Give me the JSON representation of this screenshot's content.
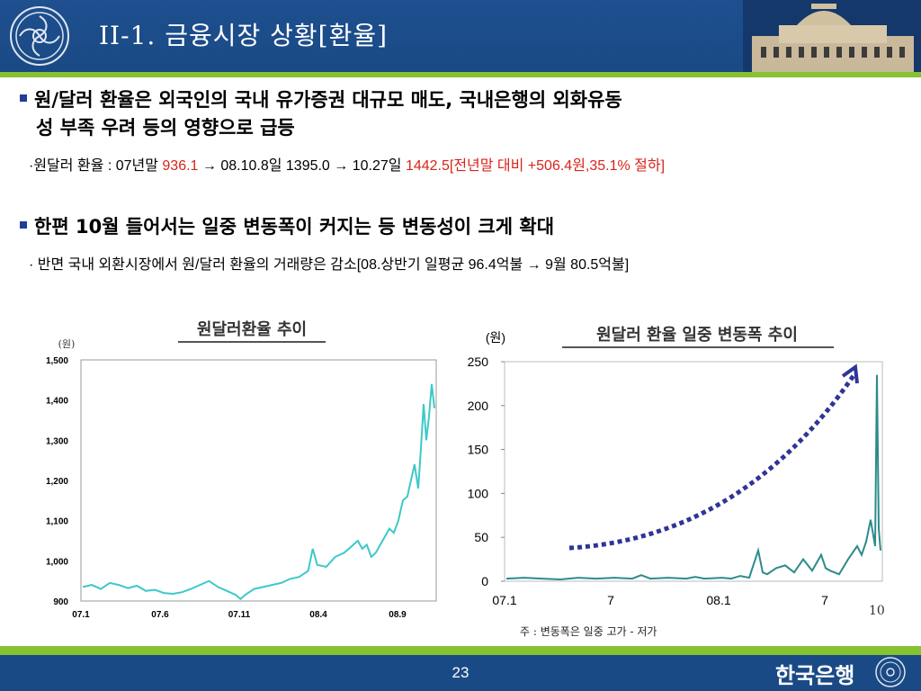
{
  "header": {
    "title": "II-1. 금융시장 상황[환율]"
  },
  "bullets": [
    {
      "line1": "원/달러 환율은 외국인의 국내 유가증권 대규모 매도, 국내은행의 외화유동",
      "line2": "성 부족 우려 등의 영향으로 급등",
      "sub": {
        "p1": "·원달러 환율 : 07년말 ",
        "v1": "936.1",
        "p2": " → 08.10.8일 1395.0 → 10.27일 ",
        "v2": "1442.5[전년말 대비  +506.4원,35.1% 절하]"
      }
    },
    {
      "line1": "한편 10월 들어서는 일중 변동폭이 커지는 등 변동성이 크게 확대",
      "sub": "· 반면 국내 외환시장에서 원/달러 환율의 거래량은 감소[08.상반기 일평균 96.4억불 → 9월 80.5억불]"
    }
  ],
  "chart_left": {
    "type": "line",
    "title": "원달러환율 추이",
    "unit": "(원)",
    "ylim": [
      900,
      1500
    ],
    "y_ticks": [
      "1,500",
      "1,400",
      "1,300",
      "1,200",
      "1,100",
      "1,000",
      "900"
    ],
    "x_ticks": [
      "07.1",
      "07.6",
      "07.11",
      "08.4",
      "08.9"
    ],
    "color": "#3ec8c8"
  },
  "chart_right": {
    "type": "line",
    "title": "원달러 환율 일중 변동폭 추이",
    "unit": "(원)",
    "ylim": [
      0,
      250
    ],
    "y_ticks": [
      "250",
      "200",
      "150",
      "100",
      "50",
      "0"
    ],
    "x_ticks": [
      "07.1",
      "7",
      "08.1",
      "7"
    ],
    "extra_tick": "10",
    "color": "#2e8b8b",
    "arrow_color": "#2f3597",
    "note": "주 : 변동폭은 일중 고가 - 저가"
  },
  "chart_data": [
    {
      "type": "line",
      "title": "원달러환율 추이",
      "ylabel": "(원)",
      "ylim": [
        900,
        1500
      ],
      "x_ticks": [
        "07.1",
        "07.6",
        "07.11",
        "08.4",
        "08.9"
      ],
      "series": [
        {
          "points": [
            [
              0,
              935
            ],
            [
              10,
              940
            ],
            [
              20,
              930
            ],
            [
              30,
              945
            ],
            [
              40,
              940
            ],
            [
              50,
              932
            ],
            [
              60,
              938
            ],
            [
              70,
              925
            ],
            [
              80,
              928
            ],
            [
              90,
              920
            ],
            [
              100,
              918
            ],
            [
              110,
              922
            ],
            [
              120,
              930
            ],
            [
              130,
              940
            ],
            [
              140,
              950
            ],
            [
              150,
              935
            ],
            [
              160,
              925
            ],
            [
              170,
              915
            ],
            [
              175,
              905
            ],
            [
              180,
              915
            ],
            [
              190,
              930
            ],
            [
              200,
              935
            ],
            [
              210,
              940
            ],
            [
              220,
              945
            ],
            [
              230,
              955
            ],
            [
              240,
              960
            ],
            [
              250,
              975
            ],
            [
              255,
              1030
            ],
            [
              260,
              990
            ],
            [
              270,
              985
            ],
            [
              280,
              1010
            ],
            [
              290,
              1020
            ],
            [
              300,
              1040
            ],
            [
              305,
              1050
            ],
            [
              310,
              1030
            ],
            [
              315,
              1040
            ],
            [
              320,
              1010
            ],
            [
              325,
              1020
            ],
            [
              330,
              1040
            ],
            [
              335,
              1060
            ],
            [
              340,
              1080
            ],
            [
              345,
              1070
            ],
            [
              350,
              1100
            ],
            [
              355,
              1150
            ],
            [
              360,
              1160
            ],
            [
              365,
              1210
            ],
            [
              368,
              1240
            ],
            [
              372,
              1180
            ],
            [
              375,
              1280
            ],
            [
              378,
              1390
            ],
            [
              381,
              1300
            ],
            [
              384,
              1360
            ],
            [
              387,
              1440
            ],
            [
              390,
              1380
            ]
          ]
        }
      ]
    },
    {
      "type": "line",
      "title": "원달러 환율 일중 변동폭 추이",
      "ylabel": "(원)",
      "ylim": [
        0,
        250
      ],
      "x_ticks": [
        "07.1",
        "7",
        "08.1",
        "7",
        "10"
      ],
      "series": [
        {
          "points": [
            [
              0,
              3
            ],
            [
              20,
              4
            ],
            [
              40,
              3
            ],
            [
              60,
              2
            ],
            [
              80,
              4
            ],
            [
              100,
              3
            ],
            [
              120,
              4
            ],
            [
              140,
              3
            ],
            [
              150,
              7
            ],
            [
              160,
              3
            ],
            [
              180,
              4
            ],
            [
              200,
              3
            ],
            [
              210,
              5
            ],
            [
              220,
              3
            ],
            [
              240,
              4
            ],
            [
              250,
              3
            ],
            [
              260,
              6
            ],
            [
              270,
              4
            ],
            [
              280,
              35
            ],
            [
              285,
              10
            ],
            [
              290,
              8
            ],
            [
              300,
              15
            ],
            [
              310,
              18
            ],
            [
              320,
              10
            ],
            [
              330,
              25
            ],
            [
              340,
              12
            ],
            [
              350,
              30
            ],
            [
              355,
              15
            ],
            [
              360,
              12
            ],
            [
              370,
              8
            ],
            [
              380,
              25
            ],
            [
              390,
              40
            ],
            [
              395,
              30
            ],
            [
              400,
              45
            ],
            [
              405,
              70
            ],
            [
              410,
              40
            ],
            [
              412,
              235
            ],
            [
              414,
              60
            ],
            [
              416,
              35
            ]
          ]
        }
      ]
    }
  ],
  "footer": {
    "page": "23",
    "org": "한국은행"
  }
}
